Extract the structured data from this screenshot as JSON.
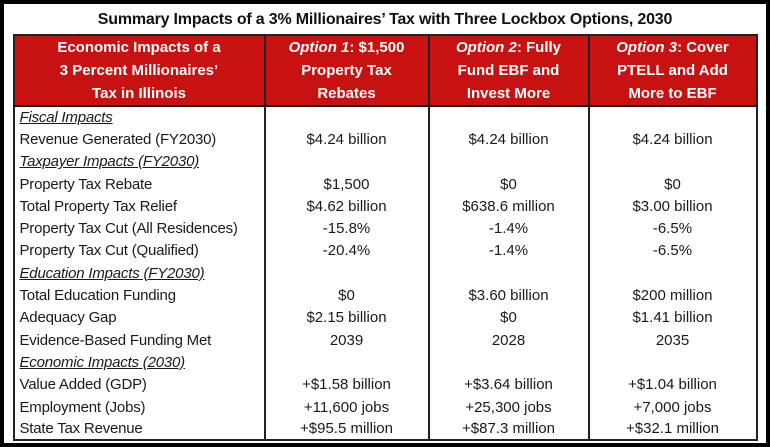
{
  "page_title": "Summary Impacts of a 3% Millionaires’ Tax with Three Lockbox Options, 2030",
  "colors": {
    "header_bg": "#c81212",
    "header_text": "#ffffff",
    "body_text": "#1a1a1a",
    "grid_line": "#222222",
    "outer_frame": "#000000"
  },
  "table": {
    "header": {
      "col0_lines": [
        "Economic Impacts of a",
        "3 Percent Millionaires’",
        "Tax in Illinois"
      ],
      "options": [
        {
          "prefix": "Option 1",
          "rest": ": $1,500 Property Tax Rebates"
        },
        {
          "prefix": "Option 2",
          "rest": ": Fully Fund EBF and Invest More"
        },
        {
          "prefix": "Option 3",
          "rest": ": Cover PTELL and Add More to EBF"
        }
      ]
    },
    "rows": [
      {
        "type": "section",
        "label": "Fiscal Impacts",
        "values": [
          "",
          "",
          ""
        ]
      },
      {
        "type": "data",
        "label": "Revenue Generated (FY2030)",
        "values": [
          "$4.24 billion",
          "$4.24 billion",
          "$4.24 billion"
        ]
      },
      {
        "type": "section",
        "label": "Taxpayer Impacts (FY2030)",
        "values": [
          "",
          "",
          ""
        ]
      },
      {
        "type": "data",
        "label": "Property Tax Rebate",
        "values": [
          "$1,500",
          "$0",
          "$0"
        ]
      },
      {
        "type": "data",
        "label": "Total Property Tax Relief",
        "values": [
          "$4.62 billion",
          "$638.6 million",
          "$3.00 billion"
        ]
      },
      {
        "type": "data",
        "label": "Property Tax Cut (All Residences)",
        "values": [
          "-15.8%",
          "-1.4%",
          "-6.5%"
        ]
      },
      {
        "type": "data",
        "label": "Property Tax Cut (Qualified)",
        "values": [
          "-20.4%",
          "-1.4%",
          "-6.5%"
        ]
      },
      {
        "type": "section",
        "label": "Education Impacts (FY2030)",
        "values": [
          "",
          "",
          ""
        ]
      },
      {
        "type": "data",
        "label": "Total Education Funding",
        "values": [
          "$0",
          "$3.60 billion",
          "$200 million"
        ]
      },
      {
        "type": "data",
        "label": "Adequacy Gap",
        "values": [
          "$2.15 billion",
          "$0",
          "$1.41 billion"
        ]
      },
      {
        "type": "data",
        "label": "Evidence-Based Funding Met",
        "values": [
          "2039",
          "2028",
          "2035"
        ]
      },
      {
        "type": "section",
        "label": "Economic Impacts (2030)",
        "values": [
          "",
          "",
          ""
        ]
      },
      {
        "type": "data",
        "label": "Value Added (GDP)",
        "values": [
          "+$1.58 billion",
          "+$3.64 billion",
          "+$1.04 billion"
        ]
      },
      {
        "type": "data",
        "label": "Employment (Jobs)",
        "values": [
          "+11,600 jobs",
          "+25,300 jobs",
          "+7,000 jobs"
        ]
      },
      {
        "type": "data",
        "label": "State Tax Revenue",
        "values": [
          "+$95.5 million",
          "+$87.3 million",
          "+$32.1 million"
        ]
      }
    ]
  }
}
